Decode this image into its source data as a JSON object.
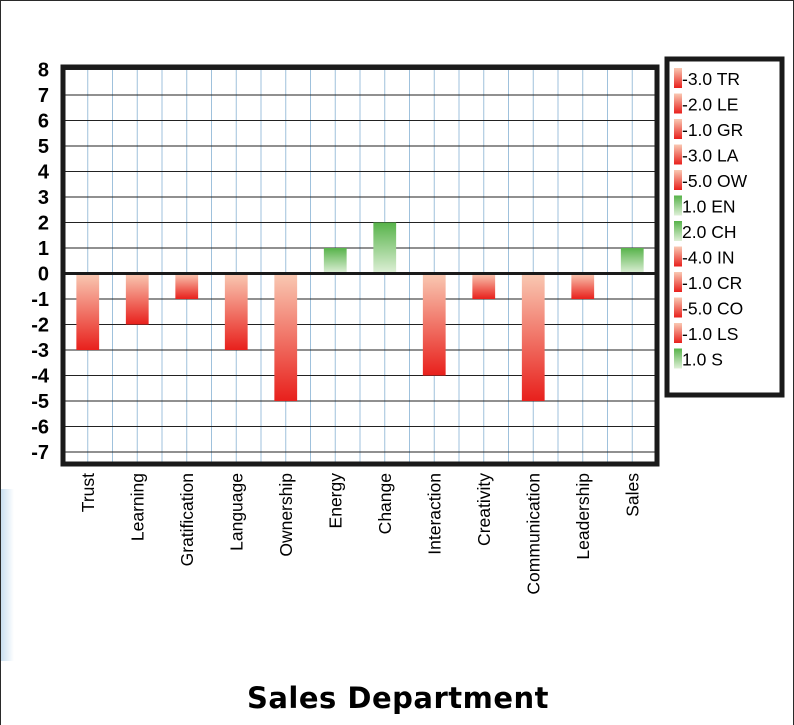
{
  "chart_data": {
    "type": "bar",
    "title": "Sales Department",
    "categories": [
      "Trust",
      "Learning",
      "Gratification",
      "Language",
      "Ownership",
      "Energy",
      "Change",
      "Interaction",
      "Creativity",
      "Communication",
      "Leadership",
      "Sales"
    ],
    "values": [
      -3,
      -2,
      -1,
      -3,
      -5,
      1,
      2,
      -4,
      -1,
      -5,
      -1,
      1
    ],
    "ylim": [
      -7.6,
      8.2
    ],
    "yticks": [
      "8",
      "7",
      "6",
      "5",
      "4",
      "3",
      "2",
      "1",
      "0",
      "-1",
      "-2",
      "-3",
      "-4",
      "-5",
      "-6",
      "-7"
    ],
    "grid": true,
    "legend_placement": "right",
    "legend": [
      "-3.0 TR",
      "-2.0 LE",
      "-1.0 GR",
      "-3.0 LA",
      "-5.0 OW",
      "1.0 EN",
      "2.0 CH",
      "-4.0 IN",
      "-1.0 CR",
      "-5.0 CO",
      "-1.0 LS",
      "1.0 S"
    ],
    "colors": {
      "negative_top": "#f9c9b3",
      "negative_bottom": "#e8201c",
      "positive_top": "#57b34a",
      "positive_bottom": "#dff0d8",
      "grid_vertical": "#9fc1dc",
      "grid_horizontal": "#222222",
      "frame": "#1a1a1a"
    }
  }
}
